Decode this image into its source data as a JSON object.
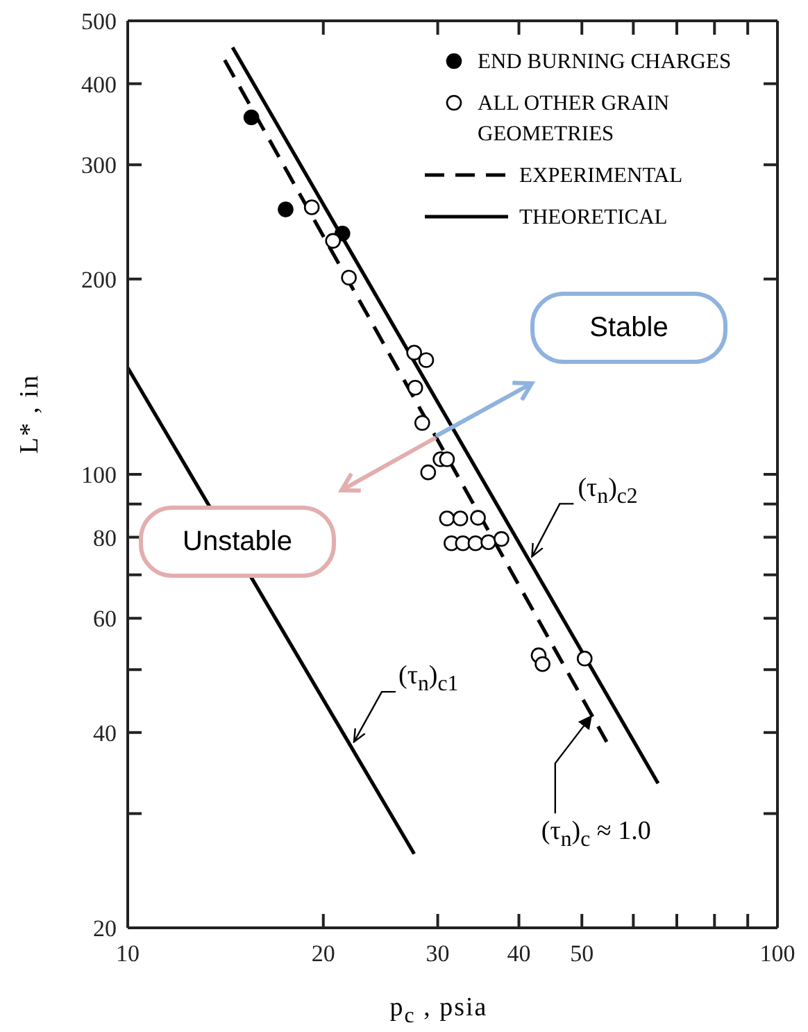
{
  "chart_data": {
    "type": "scatter",
    "xlabel": "p$_{c}$ , psia",
    "ylabel": "L* , in",
    "log": "xy",
    "xlim": [
      10,
      100
    ],
    "ylim": [
      20,
      500
    ],
    "xticks": [
      10,
      20,
      30,
      40,
      50,
      {
        "value": 60,
        "label": null
      },
      {
        "value": 70,
        "label": null
      },
      {
        "value": 80,
        "label": null
      },
      {
        "value": 90,
        "label": null
      },
      100
    ],
    "yticks": [
      20,
      {
        "value": 30,
        "label": null
      },
      40,
      {
        "value": 50,
        "label": null
      },
      60,
      {
        "value": 70,
        "label": null
      },
      80,
      {
        "value": 90,
        "label": null
      },
      100,
      200,
      300,
      400,
      500
    ],
    "grid": false,
    "legend": "top right",
    "series": [
      {
        "name": "END BURNING CHARGES",
        "marker": "circle",
        "color": "#000000",
        "x": [
          15.5,
          17.5,
          21.4
        ],
        "values": [
          355,
          256,
          235
        ]
      },
      {
        "name": "ALL OTHER GRAIN GEOMETRIES",
        "marker": "circle",
        "color": "#ffffff",
        "x": [
          19.2,
          20.7,
          21.9,
          27.6,
          28.8,
          27.7,
          28.4,
          30.3,
          31.0,
          29.0,
          31.0,
          32.5,
          34.6,
          31.5,
          32.8,
          34.3,
          35.9,
          37.6,
          42.9,
          43.5,
          50.5
        ],
        "values": [
          258,
          229,
          201,
          154,
          150,
          136,
          120,
          105.5,
          105.5,
          100.7,
          85.5,
          85.5,
          85.7,
          78.3,
          78.3,
          78.3,
          78.6,
          79.5,
          52.6,
          51,
          52
        ]
      },
      {
        "name": "EXPERIMENTAL",
        "type": "line",
        "marker": "none",
        "line_style": "dashed",
        "color": "#000000",
        "x": [
          14.1,
          54.6
        ],
        "values": [
          435,
          38.7
        ]
      },
      {
        "name": "THEORETICAL",
        "type": "line",
        "marker": "none",
        "line_style": "solid",
        "color": "#000000",
        "x": [
          14.5,
          65.5
        ],
        "values": [
          455,
          33.4
        ]
      },
      {
        "type": "line",
        "marker": "none",
        "line_style": "solid",
        "color": "#000000",
        "x": [
          10,
          27.6
        ],
        "values": [
          146,
          26.0
        ]
      }
    ],
    "annotations": [
      "Stable",
      "Unstable",
      {
        "text": "(τ$_{n}$)$_{c2}$",
        "x": 41.9,
        "y": 74.7
      },
      {
        "text": "(τ$_{n}$)$_{c1}$",
        "x": 22.3,
        "y": 38.7
      },
      {
        "text": "(τ$_{n}$)$_{c}$ ≈ 1.0",
        "x": 51.7,
        "y": 42.4
      }
    ]
  }
}
